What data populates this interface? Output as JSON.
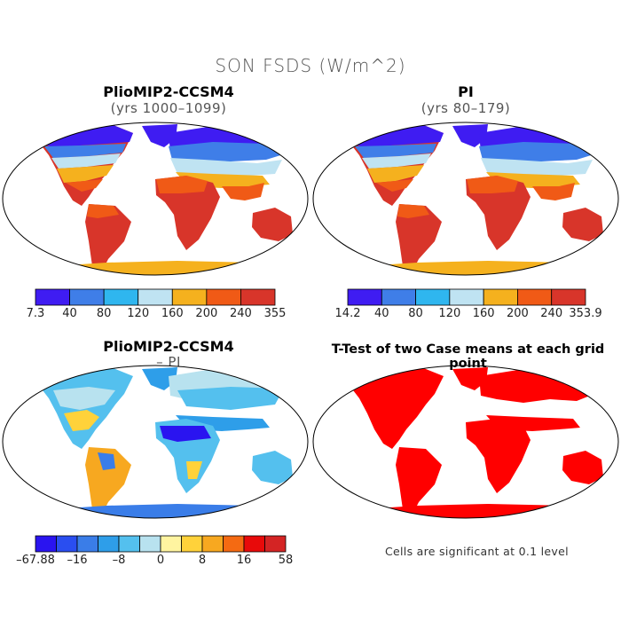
{
  "title": "SON FSDS (W/m^2)",
  "panels": {
    "top_left": {
      "title": "PlioMIP2-CCSM4",
      "subtitle": "(yrs 1000–1099)"
    },
    "top_right": {
      "title": "PI",
      "subtitle": "(yrs 80–179)"
    },
    "bottom_left": {
      "title": "PlioMIP2-CCSM4",
      "subtitle": "– PI"
    },
    "bottom_right": {
      "title": "T-Test of two Case means at each grid point"
    }
  },
  "colorbars": {
    "abs_colors": [
      "#3f1cf2",
      "#3f7ee8",
      "#2fb6ef",
      "#bfe3f2",
      "#f5b11e",
      "#f05a16",
      "#d8352a"
    ],
    "left_labels": [
      "7.3",
      "40",
      "80",
      "120",
      "160",
      "200",
      "240",
      "355"
    ],
    "right_labels": [
      "14.2",
      "40",
      "80",
      "120",
      "160",
      "200",
      "240",
      "353.9"
    ],
    "diff_colors": [
      "#2a14f0",
      "#2a4ef0",
      "#3a7de8",
      "#2e9ee9",
      "#54c0ee",
      "#b8e2ef",
      "#fff4a0",
      "#ffd23a",
      "#f7a820",
      "#f56a12",
      "#e80a0a",
      "#d42424"
    ],
    "diff_labels": [
      "–67.88",
      "–16",
      "–8",
      "0",
      "8",
      "16",
      "58"
    ]
  },
  "colors": {
    "significance": "#ff0000",
    "map_outline": "#000000"
  },
  "note": "Cells are significant at 0.1 level"
}
